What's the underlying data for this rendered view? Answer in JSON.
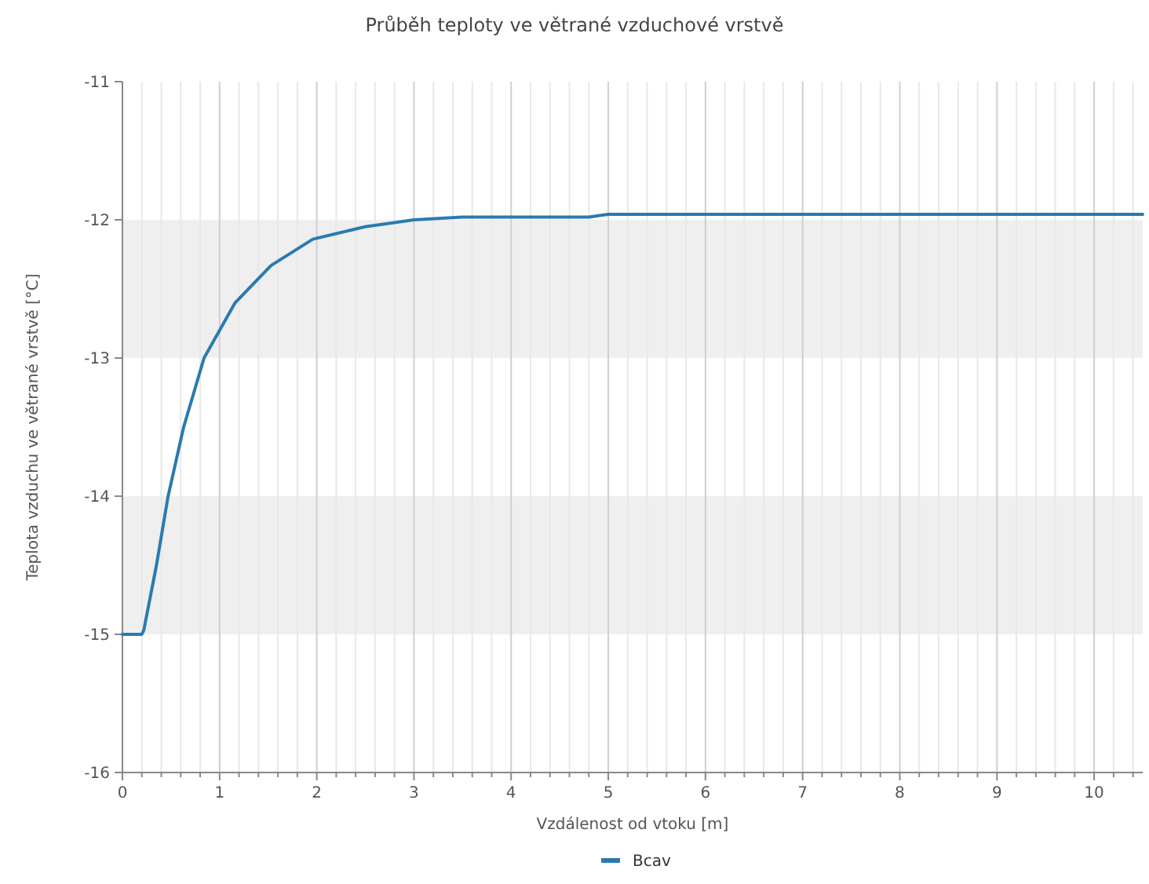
{
  "chart_data": {
    "type": "line",
    "title": "Průběh teploty ve větrané vzduchové vrstvě",
    "xlabel": "Vzdálenost od vtoku [m]",
    "ylabel": "Teplota vzduchu ve větrané vrstvě [°C]",
    "x": [
      0,
      0.2,
      0.22,
      0.35,
      0.47,
      0.63,
      0.84,
      1.16,
      1.53,
      1.96,
      2.5,
      3.0,
      3.5,
      4.8,
      5.0,
      10.5
    ],
    "series": [
      {
        "name": "Bcav",
        "color": "#2a7ab0",
        "values": [
          -15,
          -15,
          -14.97,
          -14.5,
          -14.0,
          -13.5,
          -13.0,
          -12.6,
          -12.33,
          -12.14,
          -12.05,
          -12.0,
          -11.98,
          -11.98,
          -11.96,
          -11.96
        ]
      }
    ],
    "xlim": [
      0,
      10.5
    ],
    "ylim": [
      -16,
      -11
    ],
    "xticks": [
      0,
      {
        "value": 0.2,
        "label": null
      },
      {
        "value": 0.4,
        "label": null
      },
      {
        "value": 0.6,
        "label": null
      },
      {
        "value": 0.8,
        "label": null
      },
      1,
      {
        "value": 1.2,
        "label": null
      },
      {
        "value": 1.4,
        "label": null
      },
      {
        "value": 1.6,
        "label": null
      },
      {
        "value": 1.8,
        "label": null
      },
      2,
      {
        "value": 2.2,
        "label": null
      },
      {
        "value": 2.4,
        "label": null
      },
      {
        "value": 2.6,
        "label": null
      },
      {
        "value": 2.8,
        "label": null
      },
      3,
      {
        "value": 3.2,
        "label": null
      },
      {
        "value": 3.4,
        "label": null
      },
      {
        "value": 3.6,
        "label": null
      },
      {
        "value": 3.8,
        "label": null
      },
      4,
      {
        "value": 4.2,
        "label": null
      },
      {
        "value": 4.4,
        "label": null
      },
      {
        "value": 4.6,
        "label": null
      },
      {
        "value": 4.8,
        "label": null
      },
      5,
      {
        "value": 5.2,
        "label": null
      },
      {
        "value": 5.4,
        "label": null
      },
      {
        "value": 5.6,
        "label": null
      },
      {
        "value": 5.8,
        "label": null
      },
      6,
      {
        "value": 6.2,
        "label": null
      },
      {
        "value": 6.4,
        "label": null
      },
      {
        "value": 6.6,
        "label": null
      },
      {
        "value": 6.8,
        "label": null
      },
      7,
      {
        "value": 7.2,
        "label": null
      },
      {
        "value": 7.4,
        "label": null
      },
      {
        "value": 7.6,
        "label": null
      },
      {
        "value": 7.8,
        "label": null
      },
      8,
      {
        "value": 8.2,
        "label": null
      },
      {
        "value": 8.4,
        "label": null
      },
      {
        "value": 8.6,
        "label": null
      },
      {
        "value": 8.8,
        "label": null
      },
      9,
      {
        "value": 9.2,
        "label": null
      },
      {
        "value": 9.4,
        "label": null
      },
      {
        "value": 9.6,
        "label": null
      },
      {
        "value": 9.8,
        "label": null
      },
      10,
      {
        "value": 10.2,
        "label": null
      },
      {
        "value": 10.4,
        "label": null
      }
    ],
    "yticks": [
      -16,
      -15,
      -14,
      -13,
      -12,
      -11
    ],
    "grid": true,
    "legend": "bottom",
    "marker": "none",
    "line_style": "solid"
  }
}
